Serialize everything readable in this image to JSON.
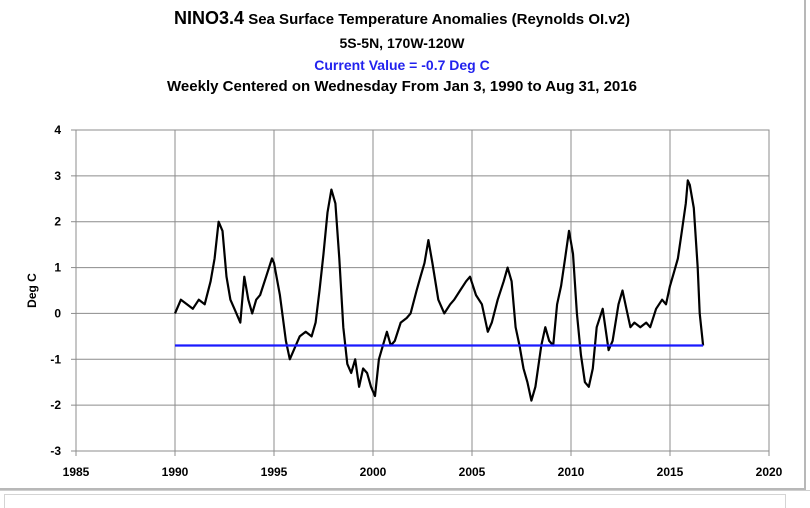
{
  "chart_data": {
    "type": "line",
    "title_main": "NINO3.4",
    "title_rest": "Sea Surface Temperature Anomalies (Reynolds OI.v2)",
    "subtitle": "5S-5N, 170W-120W",
    "current_value_text": "Current Value = -0.7 Deg C",
    "period_text": "Weekly Centered on Wednesday From Jan 3, 1990 to Aug 31, 2016",
    "xlabel": "",
    "ylabel": "Deg C",
    "xlim": [
      1985,
      2020
    ],
    "ylim": [
      -3,
      4
    ],
    "xticks": [
      "1985",
      "1990",
      "1995",
      "2000",
      "2005",
      "2010",
      "2015",
      "2020"
    ],
    "yticks": [
      "4",
      "3",
      "2",
      "1",
      "0",
      "-1",
      "-2",
      "-3"
    ],
    "grid": true,
    "series": [
      {
        "color": "#000000",
        "x": [
          1990.0,
          1990.3,
          1990.6,
          1990.9,
          1991.2,
          1991.5,
          1991.8,
          1992.0,
          1992.2,
          1992.4,
          1992.6,
          1992.8,
          1993.0,
          1993.3,
          1993.5,
          1993.7,
          1993.9,
          1994.1,
          1994.3,
          1994.6,
          1994.9,
          1995.0,
          1995.3,
          1995.6,
          1995.8,
          1996.0,
          1996.3,
          1996.6,
          1996.9,
          1997.1,
          1997.3,
          1997.5,
          1997.7,
          1997.9,
          1998.1,
          1998.3,
          1998.5,
          1998.7,
          1998.9,
          1999.1,
          1999.3,
          1999.5,
          1999.7,
          1999.9,
          2000.1,
          2000.3,
          2000.5,
          2000.7,
          2000.9,
          2001.1,
          2001.4,
          2001.7,
          2001.9,
          2002.2,
          2002.4,
          2002.6,
          2002.8,
          2003.0,
          2003.3,
          2003.6,
          2003.9,
          2004.1,
          2004.4,
          2004.7,
          2004.9,
          2005.2,
          2005.5,
          2005.8,
          2006.0,
          2006.3,
          2006.6,
          2006.8,
          2007.0,
          2007.2,
          2007.4,
          2007.6,
          2007.8,
          2008.0,
          2008.2,
          2008.5,
          2008.7,
          2008.9,
          2009.1,
          2009.3,
          2009.5,
          2009.7,
          2009.9,
          2010.1,
          2010.3,
          2010.5,
          2010.7,
          2010.9,
          2011.1,
          2011.3,
          2011.6,
          2011.9,
          2012.1,
          2012.4,
          2012.6,
          2012.8,
          2013.0,
          2013.2,
          2013.5,
          2013.8,
          2014.0,
          2014.3,
          2014.6,
          2014.8,
          2015.0,
          2015.2,
          2015.4,
          2015.6,
          2015.8,
          2015.9,
          2016.0,
          2016.2,
          2016.4,
          2016.5,
          2016.67
        ],
        "values": [
          0.0,
          0.3,
          0.2,
          0.1,
          0.3,
          0.2,
          0.7,
          1.2,
          2.0,
          1.8,
          0.8,
          0.3,
          0.1,
          -0.2,
          0.8,
          0.3,
          0.0,
          0.3,
          0.4,
          0.8,
          1.2,
          1.1,
          0.4,
          -0.6,
          -1.0,
          -0.8,
          -0.5,
          -0.4,
          -0.5,
          -0.2,
          0.5,
          1.3,
          2.2,
          2.7,
          2.4,
          1.2,
          -0.3,
          -1.1,
          -1.3,
          -1.0,
          -1.6,
          -1.2,
          -1.3,
          -1.6,
          -1.8,
          -1.0,
          -0.7,
          -0.4,
          -0.7,
          -0.6,
          -0.2,
          -0.1,
          0.0,
          0.5,
          0.8,
          1.1,
          1.6,
          1.1,
          0.3,
          0.0,
          0.2,
          0.3,
          0.5,
          0.7,
          0.8,
          0.4,
          0.2,
          -0.4,
          -0.2,
          0.3,
          0.7,
          1.0,
          0.7,
          -0.3,
          -0.7,
          -1.2,
          -1.5,
          -1.9,
          -1.6,
          -0.7,
          -0.3,
          -0.6,
          -0.7,
          0.2,
          0.6,
          1.2,
          1.8,
          1.3,
          0.0,
          -0.9,
          -1.5,
          -1.6,
          -1.2,
          -0.3,
          0.1,
          -0.8,
          -0.6,
          0.2,
          0.5,
          0.1,
          -0.3,
          -0.2,
          -0.3,
          -0.2,
          -0.3,
          0.1,
          0.3,
          0.2,
          0.6,
          0.9,
          1.2,
          1.8,
          2.4,
          2.9,
          2.8,
          2.3,
          1.0,
          0.0,
          -0.7
        ]
      },
      {
        "name": "Current Value",
        "color": "#1a1aff",
        "x": [
          1990.0,
          2016.67
        ],
        "values": [
          -0.7,
          -0.7
        ]
      }
    ]
  }
}
